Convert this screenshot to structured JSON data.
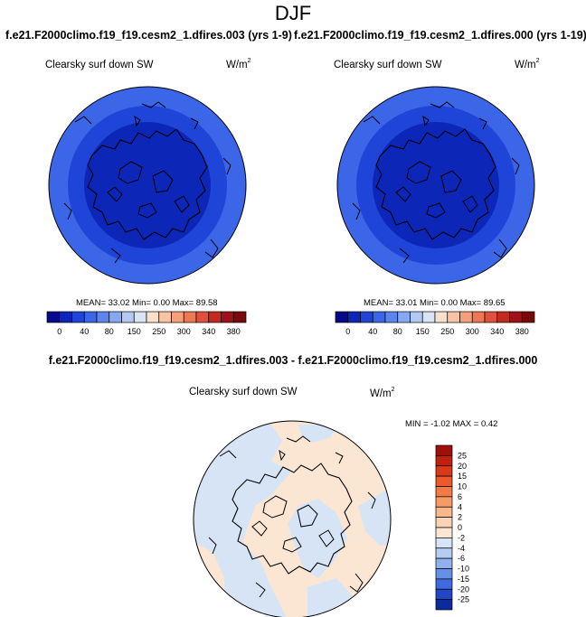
{
  "title": "DJF",
  "panels": [
    {
      "case_title": "f.e21.F2000climo.f19_f19.cesm2_1.dfires.003 (yrs 1-9)",
      "variable": "Clearsky surf down SW",
      "unit_base": "W/m",
      "unit_exp": "2",
      "stats": "MEAN=  33.02  Min=   0.00  Max=   89.58"
    },
    {
      "case_title": "f.e21.F2000climo.f19_f19.cesm2_1.dfires.000 (yrs 1-19)",
      "variable": "Clearsky surf down SW",
      "unit_base": "W/m",
      "unit_exp": "2",
      "stats": "MEAN=  33.01  Min=   0.00  Max=   89.65"
    }
  ],
  "difference": {
    "title": "f.e21.F2000climo.f19_f19.cesm2_1.dfires.003 - f.e21.F2000climo.f19_f19.cesm2_1.dfires.000",
    "variable": "Clearsky surf down SW",
    "unit_base": "W/m",
    "unit_exp": "2",
    "stats": "MIN =  -1.02 MAX =   0.42"
  },
  "chart_data": [
    {
      "type": "heatmap",
      "projection": "north-polar-stereographic",
      "title": "f.e21.F2000climo.f19_f19.cesm2_1.dfires.003 (yrs 1-9)",
      "variable": "Clearsky surf down SW",
      "units": "W/m2",
      "mean": 33.02,
      "min": 0.0,
      "max": 89.58,
      "colorbar_labels": [
        "0",
        "40",
        "80",
        "150",
        "250",
        "300",
        "340",
        "380"
      ],
      "colorbar_colors": [
        "#08088a",
        "#0c26b8",
        "#1f45d8",
        "#3b66e8",
        "#5c86ee",
        "#86a8f2",
        "#b3c8f5",
        "#d9e4f7",
        "#f7e1cc",
        "#f8c4a2",
        "#f5a07a",
        "#ee7754",
        "#e0503a",
        "#c42a22",
        "#a0121a",
        "#7a0a0a"
      ],
      "field_rings": [
        {
          "band": "0-40",
          "color": "#0c26b8"
        },
        {
          "band": "40-80",
          "color": "#1f45d8"
        },
        {
          "band": "80-150",
          "color": "#3b66e8"
        }
      ]
    },
    {
      "type": "heatmap",
      "projection": "north-polar-stereographic",
      "title": "f.e21.F2000climo.f19_f19.cesm2_1.dfires.000 (yrs 1-19)",
      "variable": "Clearsky surf down SW",
      "units": "W/m2",
      "mean": 33.01,
      "min": 0.0,
      "max": 89.65,
      "colorbar_labels": [
        "0",
        "40",
        "80",
        "150",
        "250",
        "300",
        "340",
        "380"
      ],
      "colorbar_colors": [
        "#08088a",
        "#0c26b8",
        "#1f45d8",
        "#3b66e8",
        "#5c86ee",
        "#86a8f2",
        "#b3c8f5",
        "#d9e4f7",
        "#f7e1cc",
        "#f8c4a2",
        "#f5a07a",
        "#ee7754",
        "#e0503a",
        "#c42a22",
        "#a0121a",
        "#7a0a0a"
      ],
      "field_rings": [
        {
          "band": "0-40",
          "color": "#0c26b8"
        },
        {
          "band": "40-80",
          "color": "#1f45d8"
        },
        {
          "band": "80-150",
          "color": "#3b66e8"
        }
      ]
    },
    {
      "type": "heatmap",
      "projection": "north-polar-stereographic",
      "title": "f.e21.F2000climo.f19_f19.cesm2_1.dfires.003 - f.e21.F2000climo.f19_f19.cesm2_1.dfires.000",
      "variable": "Clearsky surf down SW",
      "units": "W/m2",
      "min": -1.02,
      "max": 0.42,
      "colorbar_orientation": "vertical",
      "colorbar_labels": [
        "25",
        "20",
        "15",
        "10",
        "6",
        "4",
        "2",
        "0",
        "-2",
        "-4",
        "-6",
        "-10",
        "-15",
        "-20",
        "-25"
      ],
      "colorbar_colors": [
        "#a00f0c",
        "#c2200e",
        "#d9381a",
        "#ec5a2c",
        "#f47a45",
        "#f89a66",
        "#f9b88c",
        "#f8d3b6",
        "#fbe6d4",
        "#d6e4f6",
        "#b5cdf2",
        "#8fb2ee",
        "#6690e8",
        "#3f6adf",
        "#2147c7",
        "#0b2a9e"
      ],
      "field_colors": {
        "positive": "#fbe6d4",
        "negative": "#d6e4f6"
      }
    }
  ]
}
